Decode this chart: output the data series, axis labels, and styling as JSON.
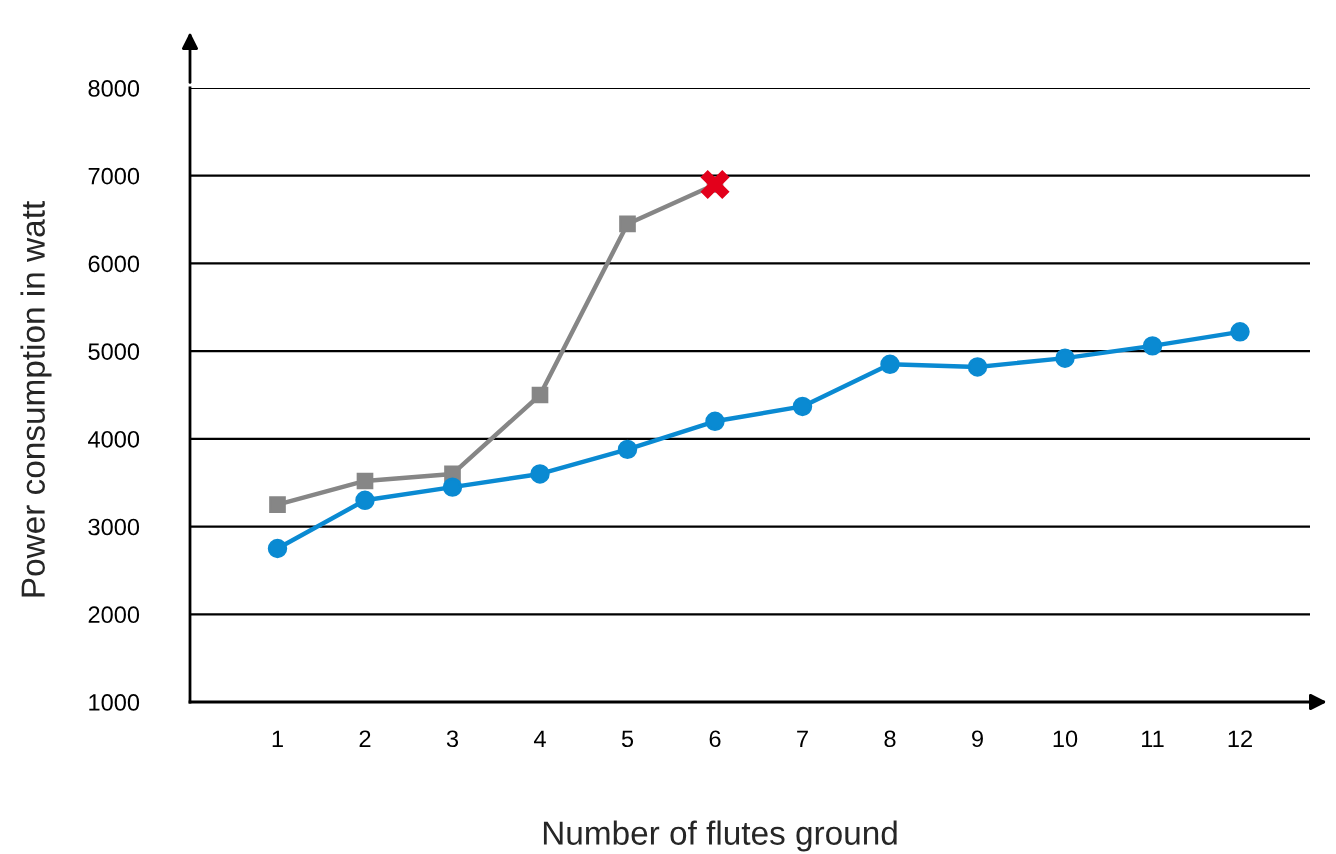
{
  "chart_data": {
    "type": "line",
    "xlabel": "Number of flutes ground",
    "ylabel": "Power consumption in watt",
    "categories": [
      "1",
      "2",
      "3",
      "4",
      "5",
      "6",
      "7",
      "8",
      "9",
      "10",
      "11",
      "12"
    ],
    "series": [
      {
        "color": "#868686",
        "marker": "square",
        "values": [
          3250,
          3520,
          3600,
          4500,
          6450,
          6900,
          null,
          null,
          null,
          null,
          null,
          null
        ]
      },
      {
        "color": "#0a8ad2",
        "marker": "circle",
        "values": [
          2750,
          3300,
          3450,
          3600,
          3880,
          4200,
          4370,
          4850,
          4820,
          4920,
          5060,
          5220
        ]
      },
      {
        "type": "scatter",
        "color": "#e3001b",
        "marker": "cross",
        "values": [
          null,
          null,
          null,
          null,
          null,
          6900,
          null,
          null,
          null,
          null,
          null,
          null
        ]
      }
    ],
    "ylim": [
      1000,
      8000
    ],
    "yticks": [
      1000,
      2000,
      3000,
      4000,
      5000,
      6000,
      7000,
      8000
    ],
    "grid": "y",
    "legend": false
  }
}
